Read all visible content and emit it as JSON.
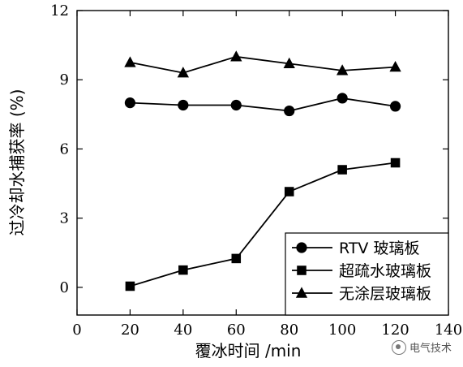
{
  "chart_data": {
    "type": "line",
    "title": "",
    "xlabel": "覆冰时间 /min",
    "ylabel": "过冷却水捕获率 (%)",
    "xlim": [
      0,
      140
    ],
    "ylim": [
      -1.2,
      12
    ],
    "xticks": [
      0,
      20,
      40,
      60,
      80,
      100,
      120,
      140
    ],
    "yticks": [
      0,
      3,
      6,
      9,
      12
    ],
    "grid": false,
    "legend_position": "bottom-right",
    "x": [
      20,
      40,
      60,
      80,
      100,
      120
    ],
    "series": [
      {
        "name": "RTV 玻璃板",
        "marker": "circle",
        "values": [
          8.0,
          7.9,
          7.9,
          7.65,
          8.2,
          7.85
        ]
      },
      {
        "name": "超疏水玻璃板",
        "marker": "square",
        "values": [
          0.05,
          0.75,
          1.25,
          4.15,
          5.1,
          5.4
        ]
      },
      {
        "name": "无涂层玻璃板",
        "marker": "triangle",
        "values": [
          9.75,
          9.3,
          10.0,
          9.7,
          9.4,
          9.55
        ]
      }
    ]
  },
  "watermark": {
    "text": "电气技术",
    "icon": "wechat-icon"
  }
}
